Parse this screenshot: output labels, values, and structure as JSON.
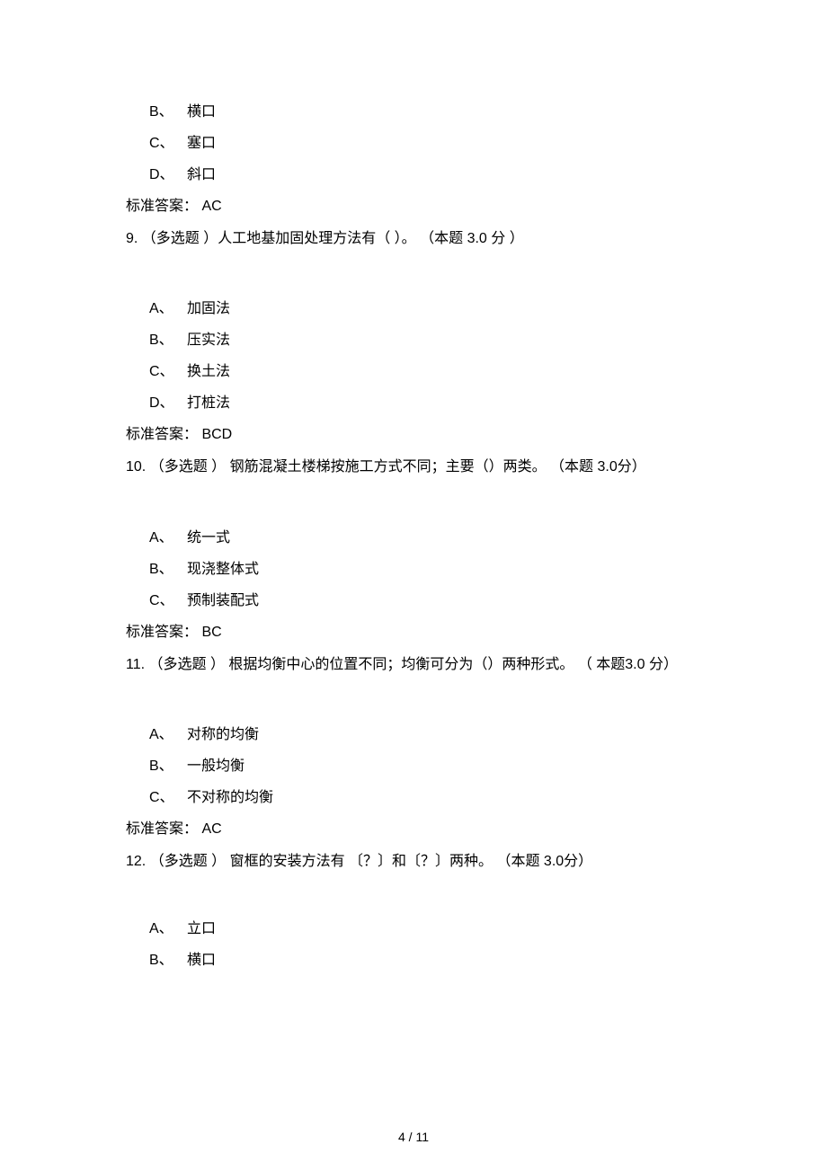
{
  "q8_partial": {
    "options": [
      {
        "letter": "B、",
        "text": "横口"
      },
      {
        "letter": "C、",
        "text": "塞口"
      },
      {
        "letter": "D、",
        "text": "斜口"
      }
    ],
    "answer": "标准答案：  AC"
  },
  "q9": {
    "stem": "9.  （多选题  ）人工地基加固处理方法有（ ）。 （本题  3.0 分  ）",
    "options": [
      {
        "letter": "A、",
        "text": "加固法"
      },
      {
        "letter": "B、",
        "text": "压实法"
      },
      {
        "letter": "C、",
        "text": "换土法"
      },
      {
        "letter": "D、",
        "text": "打桩法"
      }
    ],
    "answer": "标准答案：  BCD"
  },
  "q10": {
    "stem": "10.  （多选题  ） 钢筋混凝土楼梯按施工方式不同；主要（）两类。     （本题  3.0分）",
    "options": [
      {
        "letter": "A、",
        "text": "统一式"
      },
      {
        "letter": "B、",
        "text": "现浇整体式"
      },
      {
        "letter": "C、",
        "text": "预制装配式"
      }
    ],
    "answer": "标准答案：  BC"
  },
  "q11": {
    "stem": "11.  （多选题  ） 根据均衡中心的位置不同；均衡可分为（）两种形式。     （   本题3.0 分）",
    "options": [
      {
        "letter": "A、",
        "text": "对称的均衡"
      },
      {
        "letter": "B、",
        "text": "一般均衡"
      },
      {
        "letter": "C、",
        "text": "不对称的均衡"
      }
    ],
    "answer": "标准答案：  AC"
  },
  "q12": {
    "stem": "12.  （多选题  ） 窗框的安装方法有 〔？〕和〔？〕两种。  （本题  3.0分）",
    "options": [
      {
        "letter": "A、",
        "text": "立口"
      },
      {
        "letter": "B、",
        "text": "横口"
      }
    ]
  },
  "page_footer": "4 / 11"
}
